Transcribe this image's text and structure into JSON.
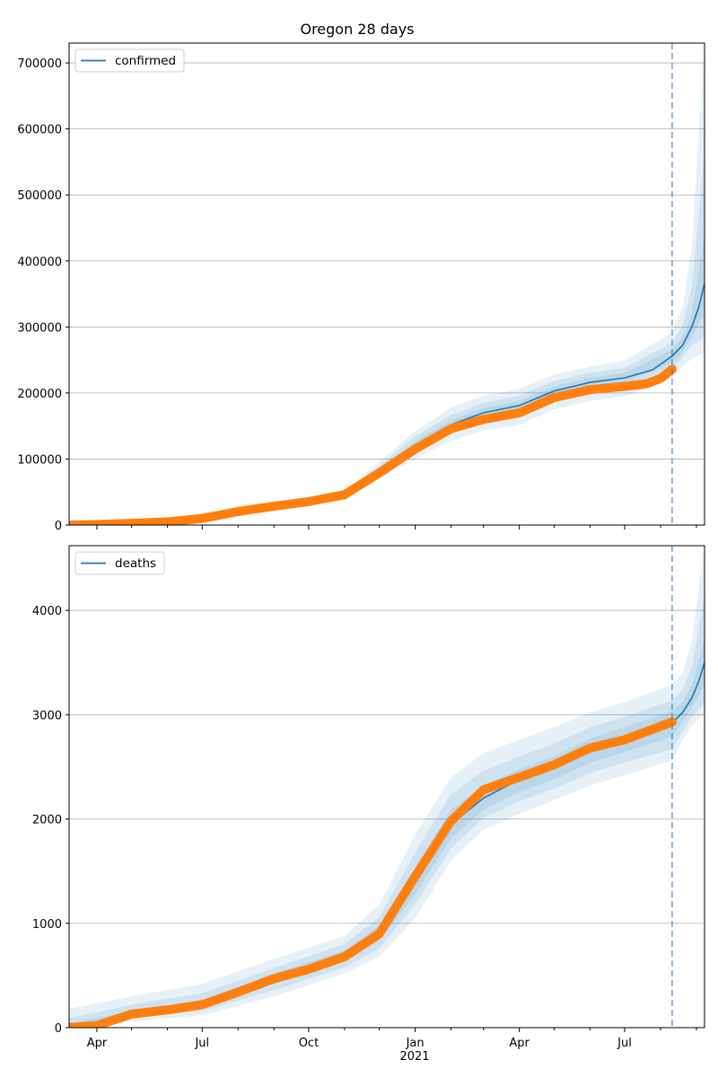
{
  "title": "Oregon 28 days",
  "colors": {
    "model": "#1f77b4",
    "observed": "#ff7f0e",
    "band": "#1f77b4",
    "grid": "#b0b0b0",
    "forecast_line": "#1f77b4"
  },
  "x_axis": {
    "start": "2020-03-08",
    "end": "2021-09-08",
    "tick_labels": [
      {
        "date": "2020-04-01",
        "label": "Apr"
      },
      {
        "date": "2020-07-01",
        "label": "Jul"
      },
      {
        "date": "2020-10-01",
        "label": "Oct"
      },
      {
        "date": "2021-01-01",
        "label": "Jan"
      },
      {
        "date": "2021-04-01",
        "label": "Apr"
      },
      {
        "date": "2021-07-01",
        "label": "Jul"
      }
    ],
    "year_label": "2021"
  },
  "forecast_start": "2021-08-11",
  "chart_data": [
    {
      "type": "line",
      "legend": "confirmed",
      "legend_position": "top-left",
      "grid": "horizontal",
      "ylim": [
        0,
        730000
      ],
      "yticks": [
        0,
        100000,
        200000,
        300000,
        400000,
        500000,
        600000,
        700000
      ],
      "model": [
        [
          "2020-03-08",
          0
        ],
        [
          "2020-04-01",
          800
        ],
        [
          "2020-05-01",
          2800
        ],
        [
          "2020-06-01",
          5000
        ],
        [
          "2020-07-01",
          10500
        ],
        [
          "2020-08-01",
          21000
        ],
        [
          "2020-09-01",
          29000
        ],
        [
          "2020-10-01",
          36000
        ],
        [
          "2020-11-01",
          47000
        ],
        [
          "2020-12-01",
          82000
        ],
        [
          "2021-01-01",
          120000
        ],
        [
          "2021-02-01",
          152000
        ],
        [
          "2021-03-01",
          170000
        ],
        [
          "2021-04-01",
          181000
        ],
        [
          "2021-05-01",
          203000
        ],
        [
          "2021-06-01",
          216000
        ],
        [
          "2021-07-01",
          223000
        ],
        [
          "2021-07-25",
          235000
        ],
        [
          "2021-08-11",
          256000
        ],
        [
          "2021-08-20",
          272000
        ],
        [
          "2021-08-28",
          300000
        ],
        [
          "2021-09-03",
          330000
        ],
        [
          "2021-09-08",
          366000
        ]
      ],
      "observed": [
        [
          "2020-03-08",
          0
        ],
        [
          "2020-04-01",
          700
        ],
        [
          "2020-05-01",
          2700
        ],
        [
          "2020-06-01",
          4800
        ],
        [
          "2020-07-01",
          10000
        ],
        [
          "2020-08-01",
          20500
        ],
        [
          "2020-09-01",
          28500
        ],
        [
          "2020-10-01",
          35500
        ],
        [
          "2020-11-01",
          46000
        ],
        [
          "2020-12-01",
          79000
        ],
        [
          "2021-01-01",
          115000
        ],
        [
          "2021-02-01",
          146000
        ],
        [
          "2021-03-01",
          160000
        ],
        [
          "2021-04-01",
          170000
        ],
        [
          "2021-05-01",
          193000
        ],
        [
          "2021-06-01",
          205000
        ],
        [
          "2021-07-01",
          210000
        ],
        [
          "2021-07-20",
          214000
        ],
        [
          "2021-08-01",
          222000
        ],
        [
          "2021-08-11",
          236000
        ]
      ],
      "bands": [
        [
          [
            "2020-11-01",
            42000,
            52000
          ],
          [
            "2020-12-01",
            70000,
            96000
          ],
          [
            "2021-01-01",
            100000,
            142000
          ],
          [
            "2021-02-01",
            128000,
            178000
          ],
          [
            "2021-03-01",
            143000,
            196000
          ],
          [
            "2021-04-01",
            152000,
            206000
          ],
          [
            "2021-05-01",
            175000,
            228000
          ],
          [
            "2021-06-01",
            188000,
            240000
          ],
          [
            "2021-07-01",
            195000,
            249000
          ],
          [
            "2021-08-11",
            222000,
            292000
          ],
          [
            "2021-08-20",
            240000,
            330000
          ],
          [
            "2021-08-28",
            252000,
            420000
          ],
          [
            "2021-09-08",
            262000,
            730000
          ]
        ],
        [
          [
            "2020-11-01",
            44000,
            50000
          ],
          [
            "2020-12-01",
            75000,
            90000
          ],
          [
            "2021-01-01",
            108000,
            134000
          ],
          [
            "2021-02-01",
            138000,
            167000
          ],
          [
            "2021-03-01",
            155000,
            185000
          ],
          [
            "2021-04-01",
            166000,
            196000
          ],
          [
            "2021-05-01",
            188000,
            218000
          ],
          [
            "2021-06-01",
            201000,
            231000
          ],
          [
            "2021-07-01",
            208000,
            238000
          ],
          [
            "2021-08-11",
            236000,
            276000
          ],
          [
            "2021-08-20",
            254000,
            302000
          ],
          [
            "2021-08-28",
            272000,
            360000
          ],
          [
            "2021-09-08",
            285000,
            560000
          ]
        ],
        [
          [
            "2020-11-01",
            45500,
            48500
          ],
          [
            "2020-12-01",
            79000,
            86000
          ],
          [
            "2021-01-01",
            114000,
            127000
          ],
          [
            "2021-02-01",
            145000,
            159000
          ],
          [
            "2021-03-01",
            163000,
            177000
          ],
          [
            "2021-04-01",
            174000,
            188000
          ],
          [
            "2021-05-01",
            196000,
            210000
          ],
          [
            "2021-06-01",
            209000,
            223000
          ],
          [
            "2021-07-01",
            216000,
            230000
          ],
          [
            "2021-08-11",
            246000,
            266000
          ],
          [
            "2021-08-20",
            262000,
            284000
          ],
          [
            "2021-08-28",
            285000,
            320000
          ],
          [
            "2021-09-08",
            320000,
            440000
          ]
        ]
      ]
    },
    {
      "type": "line",
      "legend": "deaths",
      "legend_position": "top-left",
      "grid": "horizontal",
      "ylim": [
        0,
        4620
      ],
      "yticks": [
        0,
        1000,
        2000,
        3000,
        4000
      ],
      "model": [
        [
          "2020-03-08",
          0
        ],
        [
          "2020-04-01",
          20
        ],
        [
          "2020-05-01",
          130
        ],
        [
          "2020-06-01",
          170
        ],
        [
          "2020-07-01",
          220
        ],
        [
          "2020-08-01",
          340
        ],
        [
          "2020-09-01",
          470
        ],
        [
          "2020-10-01",
          560
        ],
        [
          "2020-11-01",
          680
        ],
        [
          "2020-12-01",
          900
        ],
        [
          "2021-01-01",
          1400
        ],
        [
          "2021-02-01",
          1950
        ],
        [
          "2021-03-01",
          2200
        ],
        [
          "2021-04-01",
          2380
        ],
        [
          "2021-05-01",
          2500
        ],
        [
          "2021-06-01",
          2660
        ],
        [
          "2021-07-01",
          2770
        ],
        [
          "2021-08-11",
          2920
        ],
        [
          "2021-08-20",
          3020
        ],
        [
          "2021-08-28",
          3160
        ],
        [
          "2021-09-03",
          3320
        ],
        [
          "2021-09-08",
          3500
        ]
      ],
      "observed": [
        [
          "2020-03-08",
          0
        ],
        [
          "2020-04-01",
          20
        ],
        [
          "2020-05-01",
          130
        ],
        [
          "2020-06-01",
          170
        ],
        [
          "2020-07-01",
          220
        ],
        [
          "2020-08-01",
          340
        ],
        [
          "2020-09-01",
          470
        ],
        [
          "2020-10-01",
          560
        ],
        [
          "2020-11-01",
          680
        ],
        [
          "2020-12-01",
          900
        ],
        [
          "2021-01-01",
          1450
        ],
        [
          "2021-02-01",
          1980
        ],
        [
          "2021-03-01",
          2280
        ],
        [
          "2021-04-01",
          2400
        ],
        [
          "2021-05-01",
          2520
        ],
        [
          "2021-06-01",
          2680
        ],
        [
          "2021-07-01",
          2760
        ],
        [
          "2021-08-11",
          2930
        ]
      ],
      "bands": [
        [
          [
            "2020-03-08",
            0,
            180
          ],
          [
            "2020-05-01",
            60,
            300
          ],
          [
            "2020-07-01",
            120,
            420
          ],
          [
            "2020-09-01",
            300,
            660
          ],
          [
            "2020-11-01",
            520,
            880
          ],
          [
            "2020-12-01",
            680,
            1180
          ],
          [
            "2021-01-01",
            1050,
            1850
          ],
          [
            "2021-02-01",
            1600,
            2400
          ],
          [
            "2021-03-01",
            1900,
            2630
          ],
          [
            "2021-04-01",
            2050,
            2760
          ],
          [
            "2021-05-01",
            2180,
            2880
          ],
          [
            "2021-06-01",
            2320,
            3020
          ],
          [
            "2021-07-01",
            2420,
            3120
          ],
          [
            "2021-08-11",
            2560,
            3290
          ],
          [
            "2021-08-20",
            2760,
            3400
          ],
          [
            "2021-08-28",
            2900,
            3700
          ],
          [
            "2021-09-08",
            3000,
            4620
          ]
        ],
        [
          [
            "2020-03-08",
            0,
            90
          ],
          [
            "2020-05-01",
            90,
            220
          ],
          [
            "2020-07-01",
            160,
            330
          ],
          [
            "2020-09-01",
            360,
            570
          ],
          [
            "2020-11-01",
            580,
            800
          ],
          [
            "2020-12-01",
            760,
            1060
          ],
          [
            "2021-01-01",
            1180,
            1680
          ],
          [
            "2021-02-01",
            1720,
            2240
          ],
          [
            "2021-03-01",
            2010,
            2460
          ],
          [
            "2021-04-01",
            2170,
            2600
          ],
          [
            "2021-05-01",
            2290,
            2720
          ],
          [
            "2021-06-01",
            2440,
            2880
          ],
          [
            "2021-07-01",
            2540,
            2980
          ],
          [
            "2021-08-11",
            2670,
            3140
          ],
          [
            "2021-08-20",
            2840,
            3240
          ],
          [
            "2021-08-28",
            2980,
            3460
          ],
          [
            "2021-09-08",
            3100,
            4150
          ]
        ],
        [
          [
            "2020-03-08",
            0,
            40
          ],
          [
            "2020-05-01",
            110,
            160
          ],
          [
            "2020-07-01",
            190,
            260
          ],
          [
            "2020-09-01",
            420,
            520
          ],
          [
            "2020-11-01",
            630,
            740
          ],
          [
            "2020-12-01",
            830,
            980
          ],
          [
            "2021-01-01",
            1280,
            1540
          ],
          [
            "2021-02-01",
            1820,
            2090
          ],
          [
            "2021-03-01",
            2090,
            2320
          ],
          [
            "2021-04-01",
            2260,
            2480
          ],
          [
            "2021-05-01",
            2380,
            2600
          ],
          [
            "2021-06-01",
            2540,
            2770
          ],
          [
            "2021-07-01",
            2640,
            2880
          ],
          [
            "2021-08-11",
            2790,
            3030
          ],
          [
            "2021-08-20",
            2930,
            3120
          ],
          [
            "2021-08-28",
            3070,
            3280
          ],
          [
            "2021-09-08",
            3280,
            3720
          ]
        ]
      ]
    }
  ]
}
